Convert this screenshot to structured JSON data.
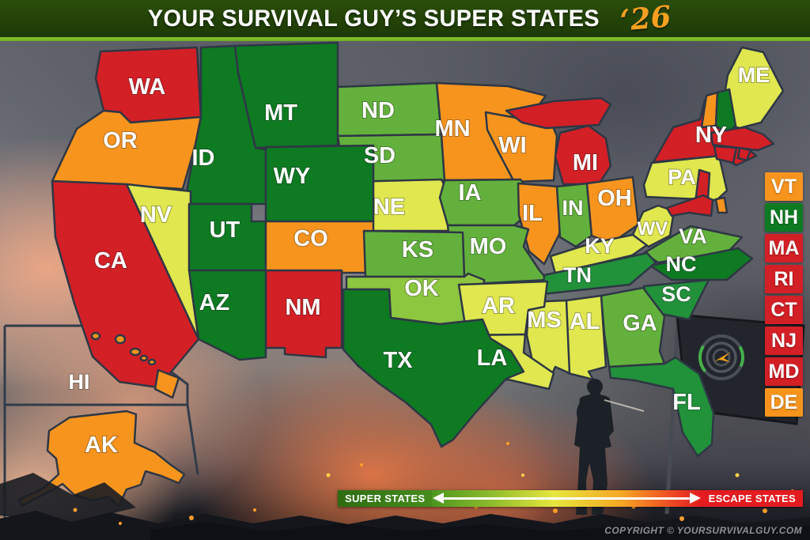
{
  "header": {
    "title": "YOUR SURVIVAL GUY’S SUPER STATES",
    "year": "‘26"
  },
  "palette": {
    "red": "#d31f26",
    "orange": "#f7941e",
    "yellow": "#e0e74f",
    "lightgreen": "#8dc63f",
    "green": "#63b13c",
    "seagreen": "#21913a",
    "darkgreen": "#0e7a22"
  },
  "map": {
    "states": [
      {
        "abbr": "WA",
        "color": "red",
        "labeled": true
      },
      {
        "abbr": "OR",
        "color": "orange",
        "labeled": true
      },
      {
        "abbr": "CA",
        "color": "red",
        "labeled": true
      },
      {
        "abbr": "NV",
        "color": "yellow",
        "labeled": true
      },
      {
        "abbr": "ID",
        "color": "darkgreen",
        "labeled": true
      },
      {
        "abbr": "MT",
        "color": "darkgreen",
        "labeled": true
      },
      {
        "abbr": "WY",
        "color": "darkgreen",
        "labeled": true
      },
      {
        "abbr": "UT",
        "color": "darkgreen",
        "labeled": true
      },
      {
        "abbr": "CO",
        "color": "orange",
        "labeled": true
      },
      {
        "abbr": "AZ",
        "color": "darkgreen",
        "labeled": true
      },
      {
        "abbr": "NM",
        "color": "red",
        "labeled": true
      },
      {
        "abbr": "ND",
        "color": "green",
        "labeled": true
      },
      {
        "abbr": "SD",
        "color": "green",
        "labeled": true
      },
      {
        "abbr": "NE",
        "color": "yellow",
        "labeled": true
      },
      {
        "abbr": "KS",
        "color": "green",
        "labeled": true
      },
      {
        "abbr": "OK",
        "color": "lightgreen",
        "labeled": true
      },
      {
        "abbr": "TX",
        "color": "darkgreen",
        "labeled": true
      },
      {
        "abbr": "MN",
        "color": "orange",
        "labeled": true
      },
      {
        "abbr": "IA",
        "color": "green",
        "labeled": true
      },
      {
        "abbr": "MO",
        "color": "green",
        "labeled": true
      },
      {
        "abbr": "AR",
        "color": "yellow",
        "labeled": true
      },
      {
        "abbr": "LA",
        "color": "yellow",
        "labeled": true
      },
      {
        "abbr": "WI",
        "color": "orange",
        "labeled": true
      },
      {
        "abbr": "IL",
        "color": "orange",
        "labeled": true
      },
      {
        "abbr": "MI",
        "color": "red",
        "labeled": true
      },
      {
        "abbr": "IN",
        "color": "green",
        "labeled": true
      },
      {
        "abbr": "OH",
        "color": "orange",
        "labeled": true
      },
      {
        "abbr": "KY",
        "color": "yellow",
        "labeled": true
      },
      {
        "abbr": "TN",
        "color": "seagreen",
        "labeled": true
      },
      {
        "abbr": "MS",
        "color": "yellow",
        "labeled": true
      },
      {
        "abbr": "AL",
        "color": "yellow",
        "labeled": true
      },
      {
        "abbr": "GA",
        "color": "green",
        "labeled": true
      },
      {
        "abbr": "FL",
        "color": "seagreen",
        "labeled": true
      },
      {
        "abbr": "SC",
        "color": "seagreen",
        "labeled": true
      },
      {
        "abbr": "NC",
        "color": "darkgreen",
        "labeled": true
      },
      {
        "abbr": "WV",
        "color": "yellow",
        "labeled": true
      },
      {
        "abbr": "VA",
        "color": "green",
        "labeled": true
      },
      {
        "abbr": "PA",
        "color": "yellow",
        "labeled": true
      },
      {
        "abbr": "NY",
        "color": "red",
        "labeled": true
      },
      {
        "abbr": "ME",
        "color": "yellow",
        "labeled": true
      },
      {
        "abbr": "VT",
        "color": "orange",
        "labeled": false
      },
      {
        "abbr": "NH",
        "color": "darkgreen",
        "labeled": false
      },
      {
        "abbr": "MA",
        "color": "red",
        "labeled": false
      },
      {
        "abbr": "CT",
        "color": "red",
        "labeled": false
      },
      {
        "abbr": "RI",
        "color": "red",
        "labeled": false
      },
      {
        "abbr": "NJ",
        "color": "red",
        "labeled": false
      },
      {
        "abbr": "MD",
        "color": "red",
        "labeled": false
      },
      {
        "abbr": "DE",
        "color": "orange",
        "labeled": false
      },
      {
        "abbr": "AK",
        "color": "orange",
        "labeled": true
      },
      {
        "abbr": "HI",
        "color": "orange",
        "labeled": true
      }
    ]
  },
  "side_legend": {
    "items": [
      {
        "abbr": "VT",
        "color": "orange"
      },
      {
        "abbr": "NH",
        "color": "darkgreen"
      },
      {
        "abbr": "MA",
        "color": "red"
      },
      {
        "abbr": "RI",
        "color": "red"
      },
      {
        "abbr": "CT",
        "color": "red"
      },
      {
        "abbr": "NJ",
        "color": "red"
      },
      {
        "abbr": "MD",
        "color": "red"
      },
      {
        "abbr": "DE",
        "color": "orange"
      }
    ]
  },
  "scale_legend": {
    "left_label": "SUPER STATES",
    "right_label": "ESCAPE STATES"
  },
  "footer": {
    "copyright": "COPYRIGHT © YOURSURVIVALGUY.COM"
  },
  "icons": {
    "flag_logo": "compass-arrow-logo"
  }
}
